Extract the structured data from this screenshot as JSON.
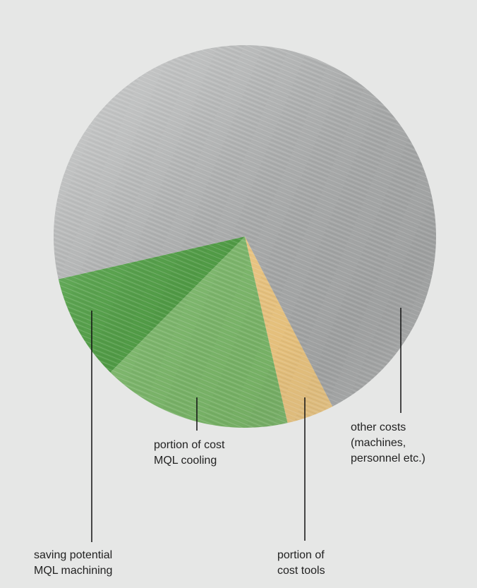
{
  "chart_data": {
    "type": "pie",
    "categories": [
      "portion of\ncost tools",
      "portion of cost\nMQL cooling",
      "saving potential\nMQL machining",
      "other costs\n(machines,\npersonnel etc.)"
    ],
    "values": [
      4,
      16,
      9,
      71
    ],
    "colors": [
      "#f0c982",
      "#7cb96a",
      "#4a9a3e",
      "#a9abab"
    ]
  }
}
